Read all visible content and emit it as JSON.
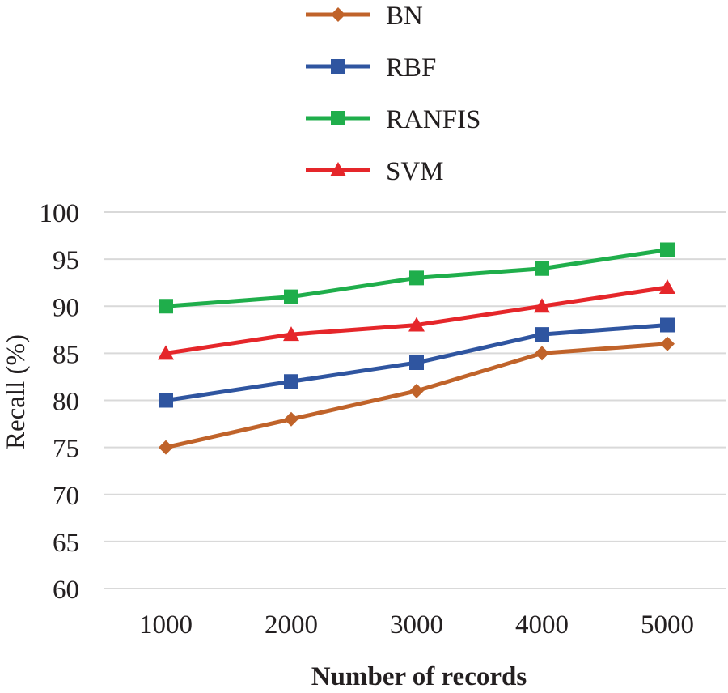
{
  "chart_data": {
    "type": "line",
    "title": "",
    "xlabel": "Number of records",
    "ylabel": "Recall (%)",
    "categories": [
      "1000",
      "2000",
      "3000",
      "4000",
      "5000"
    ],
    "ylim": [
      60,
      100
    ],
    "yticks": [
      "60",
      "65",
      "70",
      "75",
      "80",
      "85",
      "90",
      "95",
      "100"
    ],
    "grid": true,
    "legend_position": "top",
    "series": [
      {
        "name": "BN",
        "values": [
          75,
          78,
          81,
          85,
          86
        ],
        "color": "#c0632a",
        "marker": "diamond"
      },
      {
        "name": "RBF",
        "values": [
          80,
          82,
          84,
          87,
          88
        ],
        "color": "#2f55a0",
        "marker": "square"
      },
      {
        "name": "RANFIS",
        "values": [
          90,
          91,
          93,
          94,
          96
        ],
        "color": "#1fae4b",
        "marker": "square"
      },
      {
        "name": "SVM",
        "values": [
          85,
          87,
          88,
          90,
          92
        ],
        "color": "#e5262a",
        "marker": "triangle"
      }
    ]
  }
}
